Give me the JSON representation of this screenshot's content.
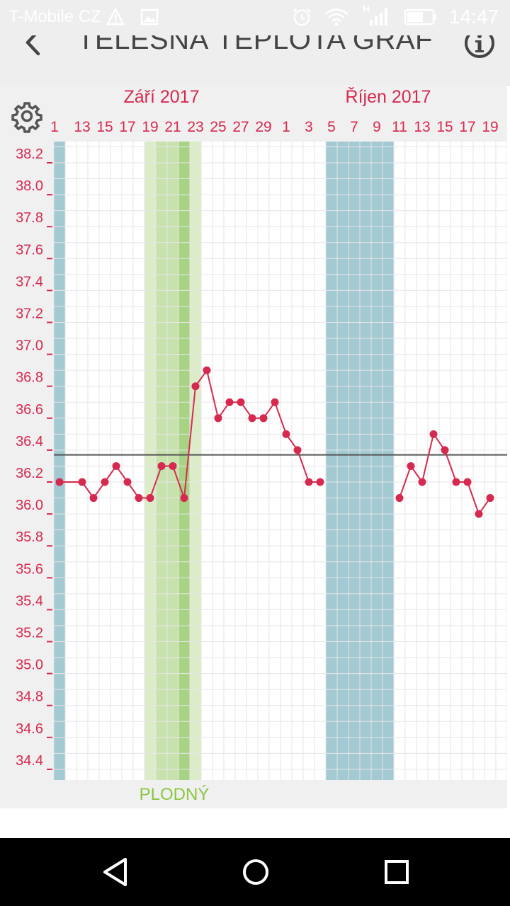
{
  "status_bar": {
    "carrier": "T-Mobile CZ",
    "time": "14:47",
    "network_type": "H",
    "icons": [
      "warning-icon",
      "image-icon",
      "alarm-icon",
      "wifi-icon",
      "signal-icon",
      "battery-icon"
    ]
  },
  "header": {
    "title": "TĚLESNÁ TEPLOTA GRAF",
    "back_icon": "chevron-left-icon",
    "info_icon": "info-icon"
  },
  "toolbar": {
    "settings_icon": "gear-icon"
  },
  "colors": {
    "accent": "#d6294f",
    "period_band": "#a3c9d3",
    "fertile_band": "#dcecc9",
    "fertile_band_mid": "#c8e2ad",
    "fertile_band_peak": "#a8d385",
    "fertile_label": "#8cc63f",
    "cover_line": "#555555",
    "plot_bg": "#ffffff",
    "frame_bg": "#f0f0f0"
  },
  "chart_data": {
    "type": "line",
    "months": [
      "Září 2017",
      "Říjen 2017"
    ],
    "x_tick_labels": [
      "1",
      "13",
      "15",
      "17",
      "19",
      "21",
      "23",
      "25",
      "27",
      "29",
      "1",
      "3",
      "5",
      "7",
      "9",
      "11",
      "13",
      "15",
      "17",
      "19"
    ],
    "days": [
      "2017-09-11",
      "2017-09-12",
      "2017-09-13",
      "2017-09-14",
      "2017-09-15",
      "2017-09-16",
      "2017-09-17",
      "2017-09-18",
      "2017-09-19",
      "2017-09-20",
      "2017-09-21",
      "2017-09-22",
      "2017-09-23",
      "2017-09-24",
      "2017-09-25",
      "2017-09-26",
      "2017-09-27",
      "2017-09-28",
      "2017-09-29",
      "2017-09-30",
      "2017-10-01",
      "2017-10-02",
      "2017-10-03",
      "2017-10-04",
      "2017-10-05",
      "2017-10-06",
      "2017-10-07",
      "2017-10-08",
      "2017-10-09",
      "2017-10-10",
      "2017-10-11",
      "2017-10-12",
      "2017-10-13",
      "2017-10-14",
      "2017-10-15",
      "2017-10-16",
      "2017-10-17",
      "2017-10-18",
      "2017-10-19",
      "2017-10-20",
      "2017-10-21"
    ],
    "series": [
      {
        "values": [
          36.2,
          null,
          36.2,
          36.1,
          36.2,
          36.3,
          36.2,
          36.1,
          36.1,
          36.3,
          36.3,
          36.1,
          36.8,
          36.9,
          36.6,
          36.7,
          36.7,
          36.6,
          36.6,
          36.7,
          36.5,
          36.4,
          36.2,
          36.2,
          null,
          null,
          null,
          null,
          null,
          null,
          36.1,
          36.3,
          36.2,
          36.5,
          36.4,
          36.2,
          36.2,
          36.0,
          36.1,
          null,
          null
        ]
      }
    ],
    "y_tick_labels": [
      "38.2",
      "38.0",
      "37.8",
      "37.6",
      "37.4",
      "37.2",
      "37.0",
      "36.8",
      "36.6",
      "36.4",
      "36.2",
      "36.0",
      "35.8",
      "35.6",
      "35.4",
      "35.2",
      "35.0",
      "34.8",
      "34.6",
      "34.4"
    ],
    "ylim": [
      34.4,
      38.2
    ],
    "cover_line": 36.37,
    "period_days": [
      [
        "2017-09-11",
        "2017-09-11"
      ],
      [
        "2017-10-05",
        "2017-10-10"
      ]
    ],
    "fertile_days": [
      "2017-09-19",
      "2017-09-23"
    ],
    "fertile_peak_days": [
      "2017-09-22",
      "2017-09-22"
    ],
    "fertile_label": "PLODNÝ",
    "grid": true,
    "legend": false
  }
}
